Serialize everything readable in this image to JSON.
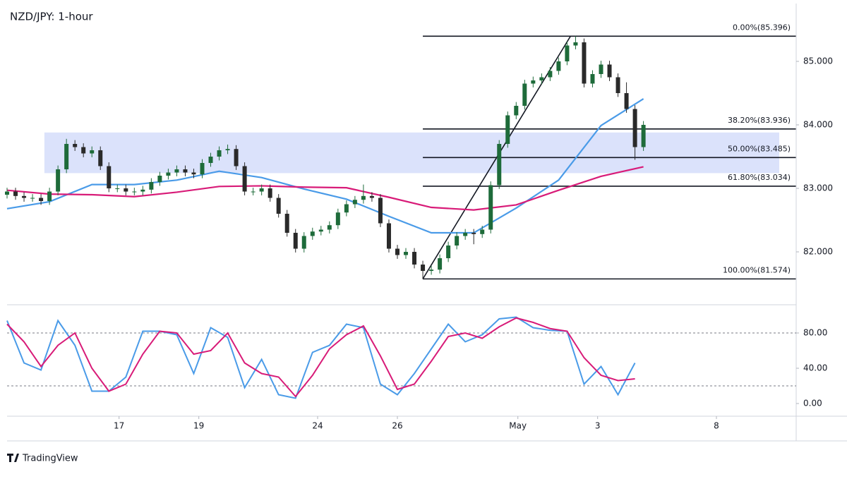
{
  "chart_data": [
    {
      "type": "candlestick",
      "title": "NZD/JPY: 1-hour",
      "xlim": [
        0,
        465
      ],
      "ylim": [
        81.167,
        85.911
      ],
      "yticks": [
        {
          "value": 82,
          "label": "82.000"
        },
        {
          "value": 83,
          "label": "83.000"
        },
        {
          "value": 84,
          "label": "84.000"
        },
        {
          "value": 85,
          "label": "85.000"
        }
      ],
      "up_color": "#1e6b3a",
      "down_color": "#2a2a2a",
      "x": [
        0,
        5,
        10,
        15,
        20,
        25,
        30,
        35,
        40,
        45,
        50,
        55,
        60,
        65,
        70,
        75,
        80,
        85,
        90,
        95,
        100,
        105,
        110,
        115,
        120,
        125,
        130,
        135,
        140,
        145,
        150,
        155,
        160,
        165,
        170,
        175,
        180,
        185,
        190,
        195,
        200,
        205,
        210,
        215,
        220,
        225,
        230,
        235,
        240,
        245,
        250,
        255,
        260,
        265,
        270,
        275,
        280,
        285,
        290,
        295,
        300,
        305,
        310,
        315,
        320,
        325,
        330,
        335,
        340,
        345,
        350,
        355,
        360,
        365,
        370,
        375
      ],
      "open": [
        82.9,
        82.95,
        82.88,
        82.85,
        82.85,
        82.8,
        82.95,
        83.3,
        83.7,
        83.65,
        83.55,
        83.6,
        83.35,
        83.0,
        83.0,
        82.95,
        82.95,
        82.98,
        83.1,
        83.2,
        83.25,
        83.3,
        83.25,
        83.22,
        83.4,
        83.5,
        83.6,
        83.62,
        83.35,
        82.95,
        82.95,
        83.0,
        82.85,
        82.6,
        82.3,
        82.05,
        82.25,
        82.32,
        82.35,
        82.42,
        82.62,
        82.75,
        82.82,
        82.88,
        82.85,
        82.45,
        82.05,
        81.95,
        82.0,
        81.8,
        81.7,
        81.72,
        81.9,
        82.1,
        82.25,
        82.3,
        82.28,
        82.35,
        83.05,
        83.7,
        84.15,
        84.3,
        84.65,
        84.7,
        84.75,
        84.85,
        85.0,
        85.25,
        85.3,
        84.65,
        84.8,
        84.95,
        84.75,
        84.5,
        84.25,
        83.65
      ],
      "high": [
        83.01,
        83.01,
        82.94,
        82.91,
        82.91,
        83.01,
        83.36,
        83.78,
        83.76,
        83.71,
        83.66,
        83.66,
        83.41,
        83.06,
        83.06,
        83.01,
        83.04,
        83.16,
        83.26,
        83.31,
        83.36,
        83.36,
        83.31,
        83.46,
        83.56,
        83.66,
        83.69,
        83.68,
        83.41,
        83.01,
        83.06,
        83.06,
        82.91,
        82.66,
        82.36,
        82.31,
        82.38,
        82.41,
        82.48,
        82.68,
        82.81,
        82.88,
        83.06,
        82.94,
        82.91,
        82.51,
        82.11,
        82.06,
        82.06,
        81.86,
        81.78,
        81.96,
        82.16,
        82.31,
        82.36,
        82.36,
        82.41,
        83.11,
        83.76,
        84.21,
        84.36,
        84.71,
        84.76,
        84.81,
        84.91,
        85.06,
        85.31,
        85.396,
        85.36,
        84.86,
        85.01,
        85.01,
        84.81,
        84.67,
        84.31,
        84.06
      ],
      "low": [
        82.84,
        82.82,
        82.79,
        82.79,
        82.74,
        82.74,
        82.89,
        83.24,
        83.59,
        83.49,
        83.49,
        83.29,
        82.94,
        82.94,
        82.89,
        82.89,
        82.89,
        82.92,
        83.04,
        83.14,
        83.19,
        83.19,
        83.16,
        83.16,
        83.34,
        83.44,
        83.54,
        83.29,
        82.89,
        82.89,
        82.89,
        82.79,
        82.54,
        82.24,
        81.99,
        81.99,
        82.19,
        82.26,
        82.29,
        82.36,
        82.56,
        82.69,
        82.76,
        82.79,
        82.39,
        81.99,
        81.89,
        81.89,
        81.74,
        81.574,
        81.64,
        81.66,
        81.84,
        82.04,
        82.19,
        82.12,
        82.22,
        82.29,
        82.99,
        83.64,
        84.09,
        84.24,
        84.59,
        84.64,
        84.69,
        84.79,
        84.94,
        85.19,
        84.59,
        84.59,
        84.74,
        84.69,
        84.44,
        84.19,
        83.45,
        83.59
      ],
      "close": [
        82.95,
        82.88,
        82.85,
        82.85,
        82.8,
        82.95,
        83.3,
        83.7,
        83.65,
        83.55,
        83.6,
        83.35,
        83.0,
        83.0,
        82.95,
        82.95,
        82.98,
        83.1,
        83.2,
        83.25,
        83.3,
        83.25,
        83.22,
        83.4,
        83.5,
        83.6,
        83.62,
        83.35,
        82.95,
        82.95,
        83.0,
        82.85,
        82.6,
        82.3,
        82.05,
        82.25,
        82.32,
        82.35,
        82.42,
        82.62,
        82.75,
        82.82,
        82.88,
        82.85,
        82.45,
        82.05,
        81.95,
        82.0,
        81.8,
        81.7,
        81.72,
        81.9,
        82.1,
        82.25,
        82.3,
        82.28,
        82.35,
        83.05,
        83.7,
        84.15,
        84.3,
        84.65,
        84.7,
        84.75,
        84.85,
        85.0,
        85.25,
        85.3,
        84.65,
        84.8,
        84.95,
        84.75,
        84.5,
        84.25,
        83.65,
        84.0
      ],
      "ma_x": [
        0,
        25,
        50,
        75,
        100,
        125,
        150,
        175,
        200,
        225,
        250,
        275,
        300,
        325,
        350,
        375
      ],
      "moving_averages": [
        {
          "color": "#4a9be8",
          "values": [
            82.68,
            82.79,
            83.06,
            83.06,
            83.13,
            83.27,
            83.17,
            82.99,
            82.83,
            82.56,
            82.3,
            82.3,
            82.69,
            83.13,
            83.99,
            84.41
          ]
        },
        {
          "color": "#d81b78",
          "values": [
            82.97,
            82.91,
            82.9,
            82.87,
            82.94,
            83.03,
            83.04,
            83.02,
            83.01,
            82.86,
            82.7,
            82.66,
            82.74,
            82.97,
            83.19,
            83.34
          ]
        }
      ],
      "zone": {
        "x": [
          22,
          455
        ],
        "y": [
          83.24,
          83.88
        ],
        "color": "#dbe2fb"
      },
      "fib_x": [
        245,
        465
      ],
      "fib_trend_x": [
        245,
        332
      ],
      "fib_levels": [
        {
          "value": 85.396,
          "label": "0.00%(85.396)"
        },
        {
          "value": 83.936,
          "label": "38.20%(83.936)"
        },
        {
          "value": 83.485,
          "label": "50.00%(83.485)"
        },
        {
          "value": 83.034,
          "label": "61.80%(83.034)"
        },
        {
          "value": 81.574,
          "label": "100.00%(81.574)"
        }
      ]
    },
    {
      "type": "line",
      "xlim": [
        0,
        465
      ],
      "ylim": [
        -14.4,
        112
      ],
      "yticks": [
        {
          "value": 0,
          "label": "0.00"
        },
        {
          "value": 40,
          "label": "40.00"
        },
        {
          "value": 80,
          "label": "80.00"
        }
      ],
      "bands": [
        20,
        80
      ],
      "xticks": [
        {
          "value": 66,
          "label": "17"
        },
        {
          "value": 113,
          "label": "19"
        },
        {
          "value": 183,
          "label": "24"
        },
        {
          "value": 230,
          "label": "26"
        },
        {
          "value": 301,
          "label": "May"
        },
        {
          "value": 348,
          "label": "3"
        },
        {
          "value": 418,
          "label": "8"
        }
      ],
      "x": [
        0,
        10,
        20,
        30,
        40,
        50,
        60,
        70,
        80,
        90,
        100,
        110,
        120,
        130,
        140,
        150,
        160,
        170,
        180,
        190,
        200,
        210,
        220,
        230,
        240,
        250,
        260,
        270,
        280,
        290,
        300,
        310,
        320,
        330,
        340,
        350,
        360,
        370
      ],
      "series": [
        {
          "color": "#4a9be8",
          "values": [
            94,
            46,
            38,
            94,
            66,
            14,
            14,
            30,
            82,
            82,
            78,
            34,
            86,
            75,
            18,
            50,
            10,
            6,
            58,
            66,
            90,
            86,
            22,
            10,
            34,
            62,
            90,
            70,
            78,
            96,
            98,
            86,
            83,
            82,
            22,
            42,
            10,
            46
          ]
        },
        {
          "color": "#d81b78",
          "values": [
            90,
            70,
            42,
            66,
            80,
            40,
            14,
            22,
            56,
            82,
            80,
            56,
            60,
            80,
            46,
            34,
            30,
            8,
            32,
            62,
            78,
            88,
            54,
            16,
            22,
            48,
            76,
            80,
            74,
            87,
            97,
            92,
            85,
            82,
            52,
            32,
            26,
            28
          ]
        }
      ]
    }
  ],
  "footer": {
    "brand": "TradingView"
  }
}
